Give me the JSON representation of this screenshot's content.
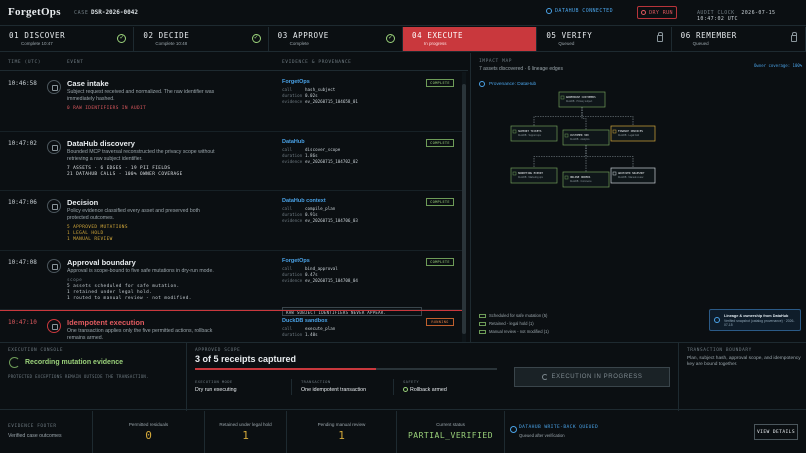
{
  "header": {
    "logo": "ForgetOps",
    "case_label": "CASE",
    "case_id": "DSR-2026-0042",
    "datahub_status": "DATAHUB CONNECTED",
    "dry_run_label": "DRY RUN",
    "audit_clock_label": "AUDIT CLOCK",
    "audit_clock_value": "2026-07-15 10:47:02 UTC"
  },
  "steps": [
    {
      "title": "01 DISCOVER",
      "sub": "Complete 10:47",
      "state": "done"
    },
    {
      "title": "02 DECIDE",
      "sub": "Complete 10:48",
      "state": "done"
    },
    {
      "title": "03 APPROVE",
      "sub": "Complete",
      "state": "done"
    },
    {
      "title": "04 EXECUTE",
      "sub": "In progress",
      "state": "active"
    },
    {
      "title": "05 VERIFY",
      "sub": "Queued",
      "state": "locked"
    },
    {
      "title": "06 REMEMBER",
      "sub": "Queued",
      "state": "locked"
    }
  ],
  "timeline_headers": {
    "time": "TIME (UTC)",
    "event": "EVENT",
    "evidence": "EVIDENCE & PROVENANCE"
  },
  "events": [
    {
      "time": "10:46:58",
      "title": "Case intake",
      "desc": "Subject request received and normalized. The raw identifier was immediately hashed.",
      "metrics": [
        "0 RAW IDENTIFIERS IN AUDIT"
      ],
      "metric_color": "#e05a5f",
      "source": "ForgetOps",
      "kv": [
        {
          "k": "call",
          "v": "hash_subject"
        },
        {
          "k": "duration",
          "v": "0.02s"
        },
        {
          "k": "evidence",
          "v": "ev_20260715_104658_01"
        }
      ],
      "status": "COMPLETE"
    },
    {
      "time": "10:47:02",
      "title": "DataHub discovery",
      "desc": "Bounded MCP traversal reconstructed the privacy scope without retrieving a raw subject identifier.",
      "metrics": [
        "7 ASSETS · 6 EDGES · 19 PII FIELDS",
        "21 DATAHUB CALLS · 100% OWNER COVERAGE"
      ],
      "metric_color": "#dfe3e6",
      "source": "DataHub",
      "kv": [
        {
          "k": "call",
          "v": "discover_scope"
        },
        {
          "k": "duration",
          "v": "1.86s"
        },
        {
          "k": "evidence",
          "v": "ev_20260715_104702_02"
        }
      ],
      "status": "COMPLETE"
    },
    {
      "time": "10:47:06",
      "title": "Decision",
      "desc": "Policy evidence classified every asset and preserved both protected outcomes.",
      "metrics": [
        "5 APPROVED MUTATIONS",
        "1 LEGAL HOLD",
        "1 MANUAL REVIEW"
      ],
      "metric_color": "#d4a93a",
      "source": "DataHub context",
      "kv": [
        {
          "k": "call",
          "v": "compile_plan"
        },
        {
          "k": "duration",
          "v": "0.91s"
        },
        {
          "k": "evidence",
          "v": "ev_20260715_104706_03"
        }
      ],
      "status": "COMPLETE"
    },
    {
      "time": "10:47:08",
      "title": "Approval boundary",
      "desc": "Approval is scope-bound to five safe mutations in dry-run mode.",
      "metrics_label": "scope",
      "metrics": [
        "5 assets scheduled for safe mutation.",
        "1 retained under legal hold.",
        "1 routed to manual review - not modified."
      ],
      "metric_color": "#c9d1d6",
      "source": "ForgetOps",
      "kv": [
        {
          "k": "call",
          "v": "bind_approval"
        },
        {
          "k": "duration",
          "v": "0.47s"
        },
        {
          "k": "evidence",
          "v": "ev_20260715_104708_04"
        }
      ],
      "note": "RAW SUBJECT IDENTIFIERS NEVER APPEAR.",
      "status": "COMPLETE"
    },
    {
      "time": "10:47:10",
      "title": "Idempotent execution",
      "desc": "One transaction applies only the five permitted actions, rollback remains armed.",
      "metrics": [],
      "metric_color": "#c9d1d6",
      "source": "DuckDB sandbox",
      "kv": [
        {
          "k": "call",
          "v": "execute_plan"
        },
        {
          "k": "duration",
          "v": "1.40s"
        }
      ],
      "status": "RUNNING"
    }
  ],
  "impact": {
    "title": "IMPACT MAP",
    "sub": "7 assets discovered · 6 lineage edges",
    "owner": "Owner coverage: 100%",
    "prov": "Provenance: DataHub",
    "nodes": [
      {
        "title": "WAREHOUSE CUSTOMERS",
        "sub": "DuckDB · Primary subject"
      },
      {
        "title": "SUPPORT TICKETS",
        "sub": "DuckDB · Support ops"
      },
      {
        "title": "CUSTOMER 360",
        "sub": "DuckDB · Analytics"
      },
      {
        "title": "FINANCE INVOICES",
        "sub": "DuckDB · Legal hold"
      },
      {
        "title": "MARKETING EXPORT",
        "sub": "DuckDB · Marketing ops"
      },
      {
        "title": "ONLINE ORDERS",
        "sub": "DuckDB · Commerce"
      },
      {
        "title": "ARCHIVED SNAPSHOT",
        "sub": "DuckDB · Manual review"
      }
    ],
    "legend": [
      "Scheduled for safe mutation (5)",
      "Retained - legal hold (1)",
      "Manual review - not modified (1)"
    ],
    "lineage_title": "Lineage & ownership from DataHub",
    "lineage_sub": "Verified snapshot (catalog provenance) · 2026-07-15"
  },
  "console": {
    "label": "EXECUTION CONSOLE",
    "main": "Recording mutation evidence",
    "note": "PROTECTED EXCEPTIONS REMAIN OUTSIDE THE TRANSACTION.",
    "approved_label": "APPROVED SCOPE",
    "approved_main": "3 of 5 receipts captured",
    "approved_progress": 0.6,
    "cols": [
      {
        "k": "EXECUTION MODE",
        "v": "Dry run executing"
      },
      {
        "k": "TRANSACTION",
        "v": "One idempotent transaction"
      },
      {
        "k": "SAFETY",
        "v": "Rollback armed"
      }
    ],
    "exec_button": "EXECUTION IN PROGRESS",
    "tb_label": "TRANSACTION BOUNDARY",
    "tb_text": "Plan, subject hash, approval scope, and idempotency key are bound together."
  },
  "footer": {
    "label": "EVIDENCE FOOTER",
    "sub": "Verified case outcomes",
    "stats": [
      {
        "k": "Permitted residuals",
        "v": "0"
      },
      {
        "k": "Retained under legal hold",
        "v": "1"
      },
      {
        "k": "Pending manual review",
        "v": "1"
      },
      {
        "k": "Current status",
        "v": "PARTIAL_VERIFIED"
      }
    ],
    "wb_title": "DATAHUB WRITE-BACK QUEUED",
    "wb_sub": "Queued after verification",
    "view_button": "VIEW DETAILS"
  }
}
